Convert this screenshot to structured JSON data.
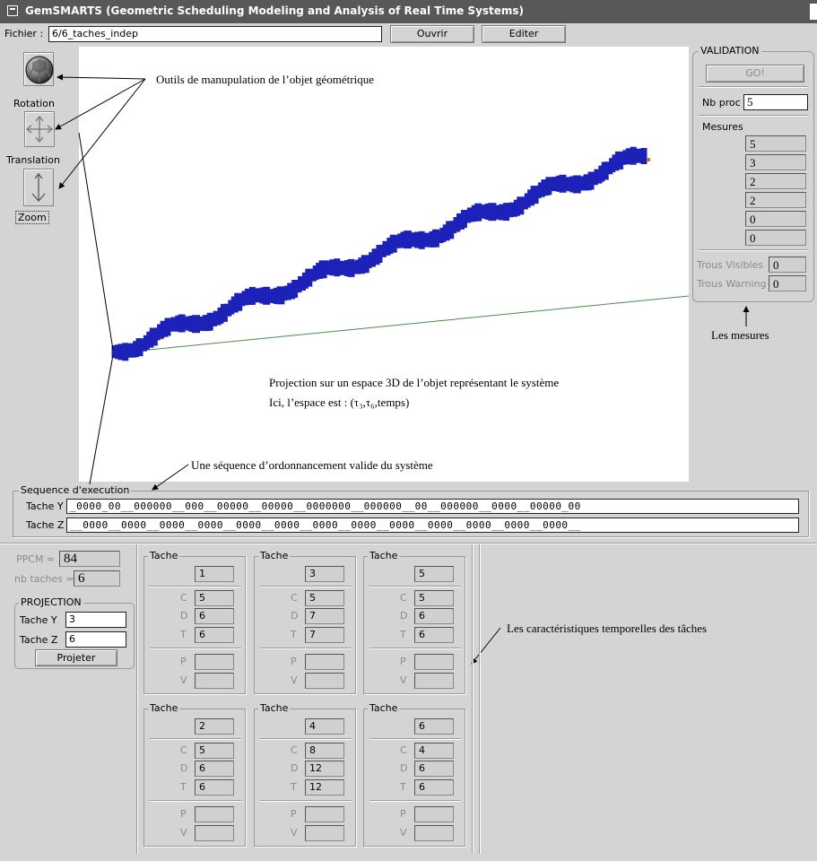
{
  "window": {
    "title": "GemSMARTS (Geometric Scheduling Modeling and Analysis of Real Time Systems)"
  },
  "file_bar": {
    "label": "Fichier :",
    "value": "6/6_taches_indep",
    "open_label": "Ouvrir",
    "edit_label": "Editer"
  },
  "tools": [
    {
      "label": "Rotation",
      "icon": "sphere-icon"
    },
    {
      "label": "Translation",
      "icon": "move-arrows-icon"
    },
    {
      "label": "Zoom",
      "icon": "zoom-arrow-icon"
    }
  ],
  "annotations": {
    "tools": "Outils de manupulation de l’objet géométrique",
    "projection_line1": "Projection sur un espace 3D de l’objet représentant le système",
    "projection_line2": "Ici, l’espace est : (τ₃,τ₆,temps)",
    "sequence": "Une séquence d’ordonnancement valide du système",
    "measures": "Les mesures",
    "characteristics": "Les caractéristiques temporelles des tâches"
  },
  "validation": {
    "title": "VALIDATION",
    "go_label": "GO!",
    "nb_proc_label": "Nb proc",
    "nb_proc_value": "5",
    "mesures_label": "Mesures",
    "mesures": [
      "5",
      "3",
      "2",
      "2",
      "0",
      "0"
    ],
    "trous_visibles_label": "Trous Visibles",
    "trous_visibles_value": "0",
    "trous_warning_label": "Trous Warning",
    "trous_warning_value": "0"
  },
  "sequence": {
    "title": "Sequence d'execution",
    "tache_y_label": "Tache Y",
    "tache_y_value": "_0000_00__000000__000__00000__00000__0000000__000000__00__000000__0000__00000_00",
    "tache_z_label": "Tache Z",
    "tache_z_value": "__0000__0000__0000__0000__0000__0000__0000__0000__0000__0000__0000__0000__0000__"
  },
  "summary": {
    "ppcm_label": "PPCM =",
    "ppcm_value": "84",
    "nb_taches_label": "nb taches =",
    "nb_taches_value": "6"
  },
  "projection": {
    "title": "PROJECTION",
    "tache_y_label": "Tache Y",
    "tache_y_value": "3",
    "tache_z_label": "Tache Z",
    "tache_z_value": "6",
    "button_label": "Projeter"
  },
  "task_group_label": "Tache",
  "param_labels": {
    "c": "C",
    "d": "D",
    "t": "T",
    "p": "P",
    "v": "V"
  },
  "tasks": [
    {
      "id": "1",
      "c": "5",
      "d": "6",
      "t": "6"
    },
    {
      "id": "3",
      "c": "5",
      "d": "7",
      "t": "7"
    },
    {
      "id": "5",
      "c": "5",
      "d": "6",
      "t": "6"
    },
    {
      "id": "2",
      "c": "5",
      "d": "6",
      "t": "6"
    },
    {
      "id": "4",
      "c": "8",
      "d": "12",
      "t": "12"
    },
    {
      "id": "6",
      "c": "4",
      "d": "6",
      "t": "6"
    }
  ],
  "colors": {
    "titlebar": "#585858",
    "helix_blue": "#1c22b8",
    "helix_orange": "#c07838",
    "axis_green": "#4a8a4a"
  }
}
